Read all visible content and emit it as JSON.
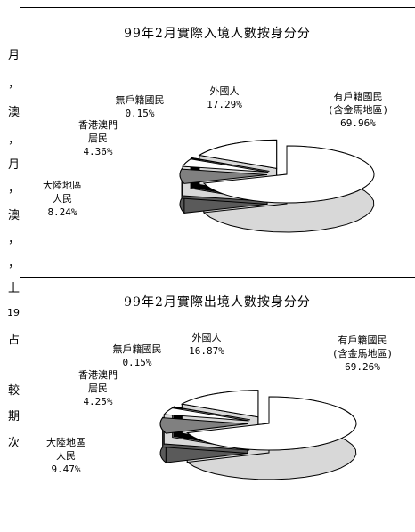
{
  "left_margin_chars": [
    "月",
    "，",
    "澳",
    "，",
    "月",
    "，",
    "澳",
    "，",
    "，",
    "上",
    "19",
    "占",
    "較",
    "期",
    "次"
  ],
  "chart_data": [
    {
      "type": "pie",
      "title": "99年2月實際入境人數按身分分",
      "slices": [
        {
          "label": "有戶籍國民\n(含金馬地區)",
          "value": 69.96,
          "value_text": "69.96%",
          "color": "#ffffff"
        },
        {
          "label": "大陸地區\n人民",
          "value": 8.24,
          "value_text": "8.24%",
          "color": "#808080"
        },
        {
          "label": "香港澳門\n居民",
          "value": 4.36,
          "value_text": "4.36%",
          "color": "#ffffff"
        },
        {
          "label": "無戶籍國民",
          "value": 0.15,
          "value_text": "0.15%",
          "color": "#000000"
        },
        {
          "label": "外國人",
          "value": 17.29,
          "value_text": "17.29%",
          "color": "#ffffff"
        }
      ]
    },
    {
      "type": "pie",
      "title": "99年2月實際出境人數按身分分",
      "slices": [
        {
          "label": "有戶籍國民\n(含金馬地區)",
          "value": 69.26,
          "value_text": "69.26%",
          "color": "#ffffff"
        },
        {
          "label": "大陸地區\n人民",
          "value": 9.47,
          "value_text": "9.47%",
          "color": "#808080"
        },
        {
          "label": "香港澳門\n居民",
          "value": 4.25,
          "value_text": "4.25%",
          "color": "#ffffff"
        },
        {
          "label": "無戶籍國民",
          "value": 0.15,
          "value_text": "0.15%",
          "color": "#000000"
        },
        {
          "label": "外國人",
          "value": 16.87,
          "value_text": "16.87%",
          "color": "#ffffff"
        }
      ]
    }
  ]
}
